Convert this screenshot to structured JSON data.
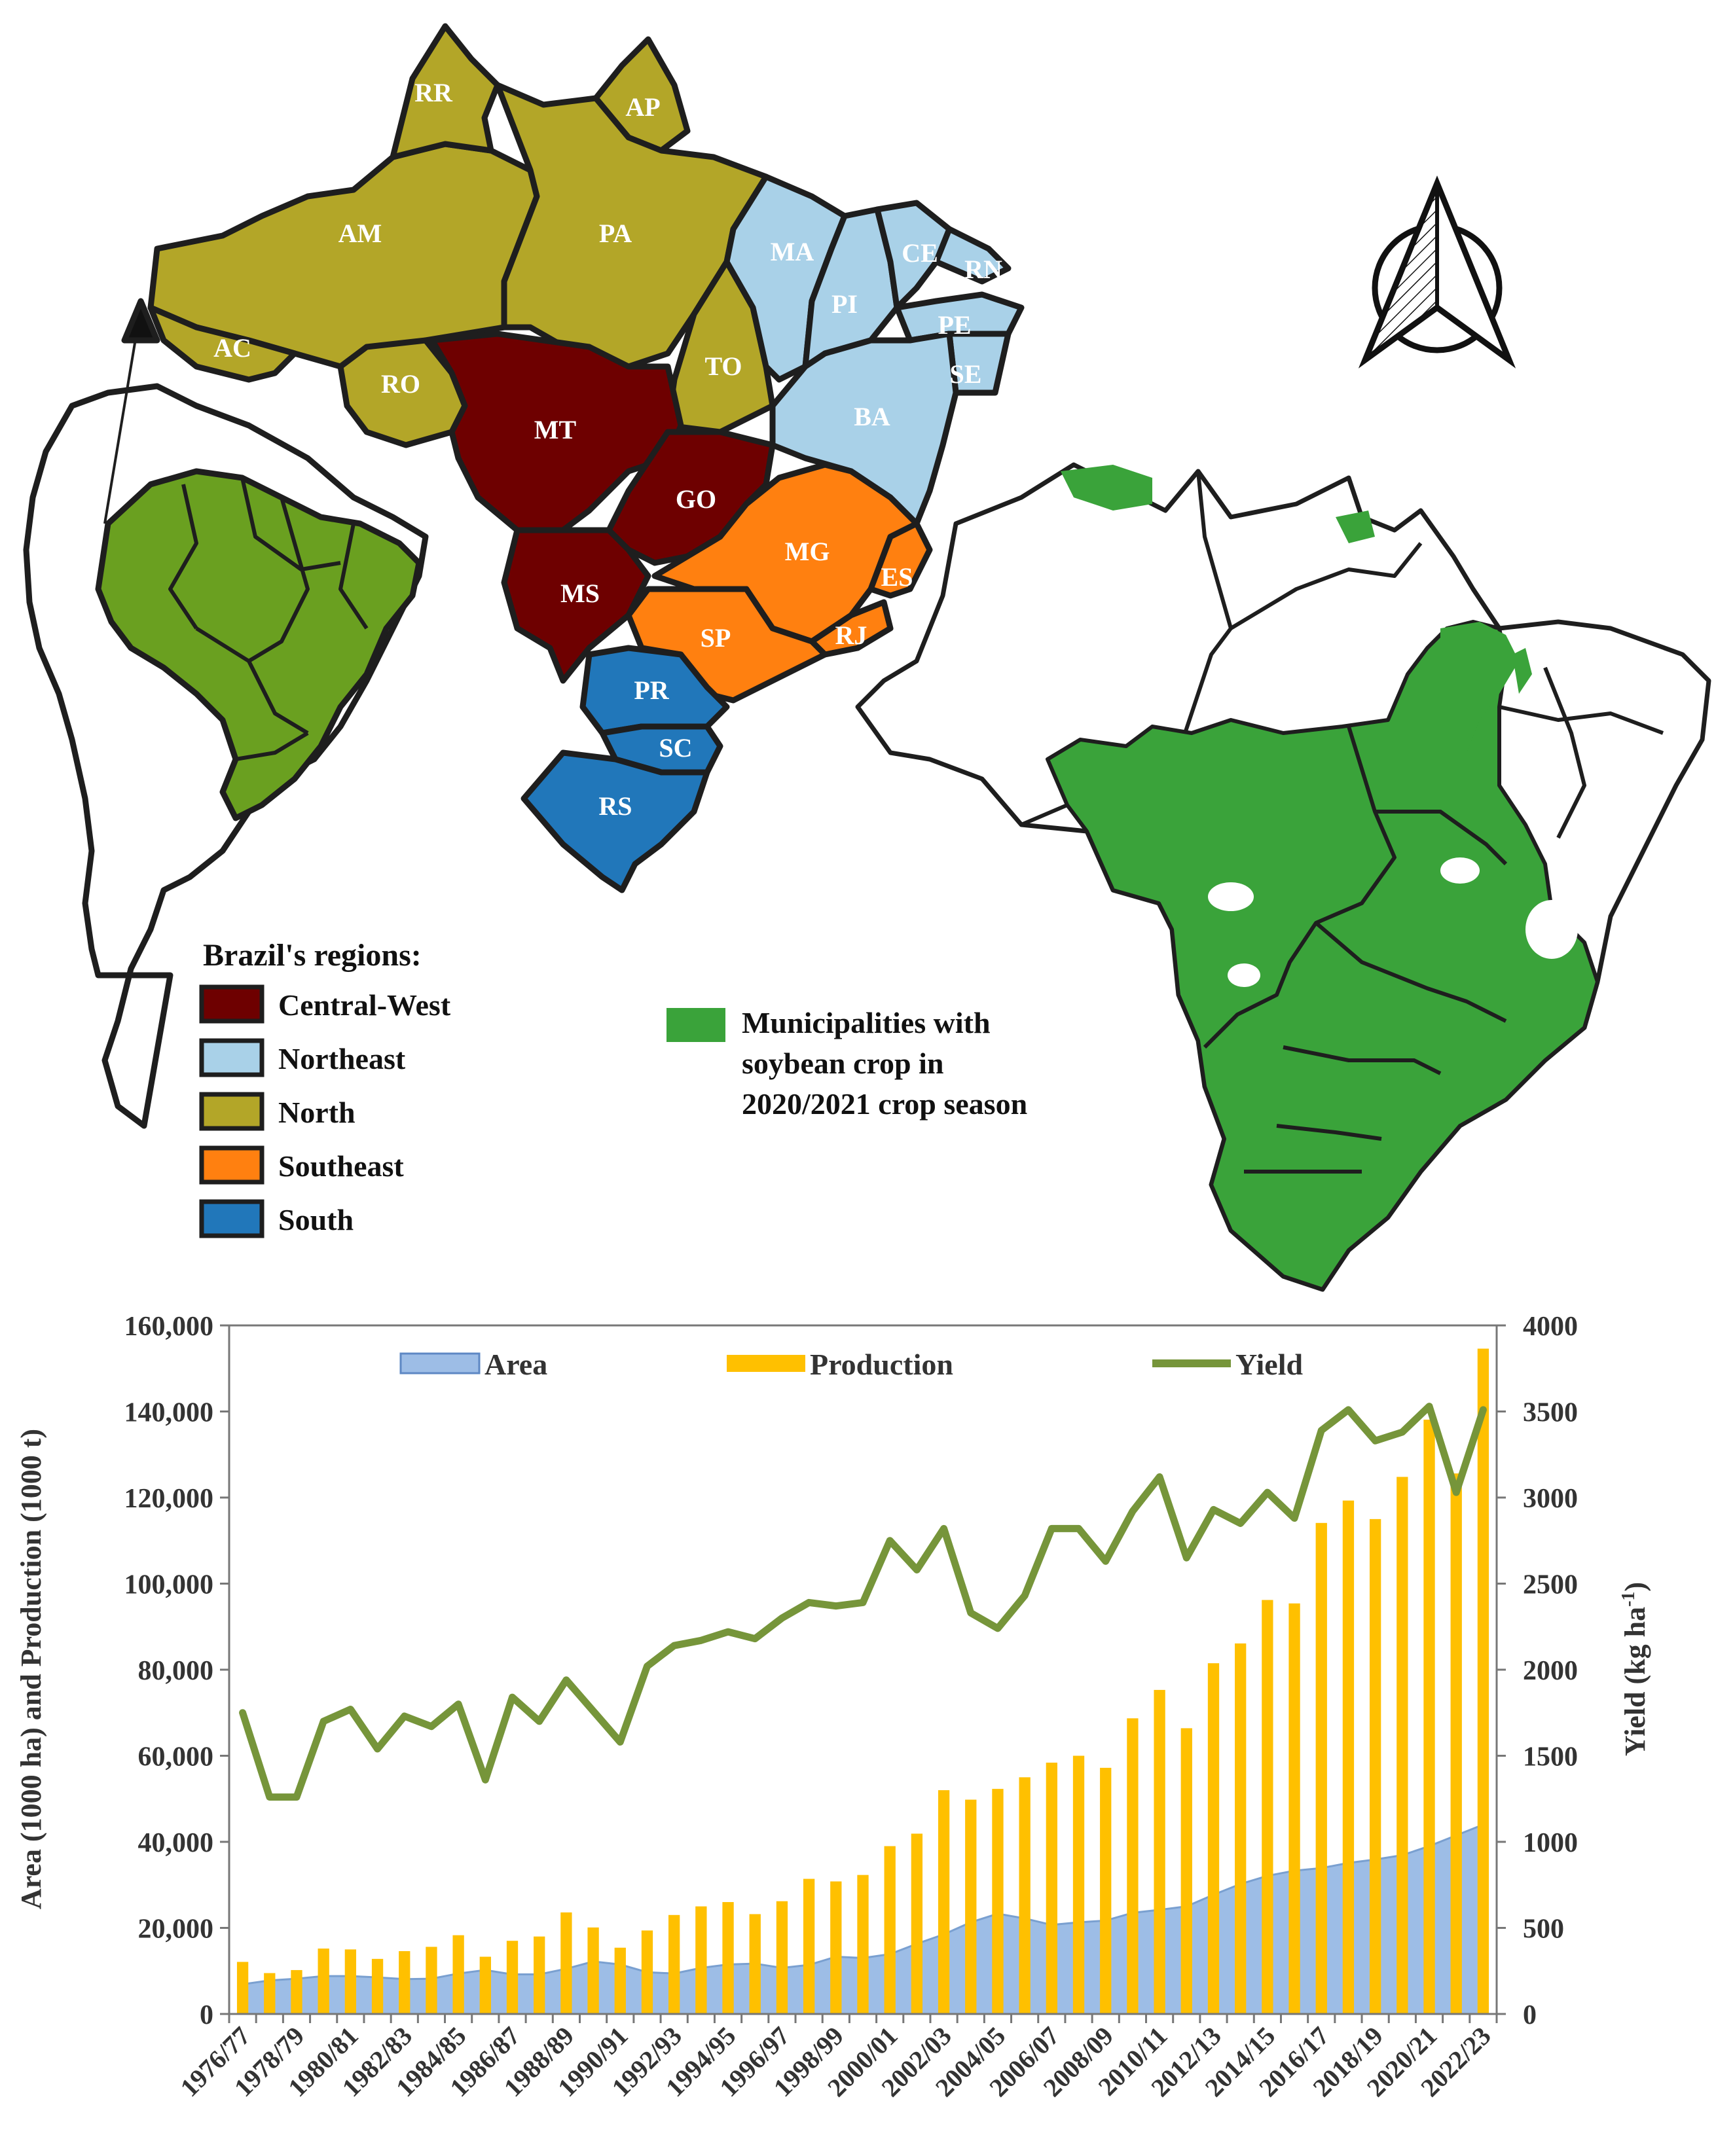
{
  "colors": {
    "central_west": "#6e0000",
    "northeast": "#a9d1e8",
    "north": "#b3a628",
    "southeast": "#ff8010",
    "south": "#2177ba",
    "soy": "#3aa33a",
    "area": "#9dbde6",
    "production": "#ffc000",
    "yield": "#76953a"
  },
  "map": {
    "states": {
      "RR": "RR",
      "AP": "AP",
      "AM": "AM",
      "PA": "PA",
      "AC": "AC",
      "RO": "RO",
      "TO": "TO",
      "MA": "MA",
      "CE": "CE",
      "RN": "RN",
      "PI": "PI",
      "PE": "PE",
      "SE": "SE",
      "BA": "BA",
      "MT": "MT",
      "GO": "GO",
      "MS": "MS",
      "MG": "MG",
      "ES": "ES",
      "SP": "SP",
      "RJ": "RJ",
      "PR": "PR",
      "SC": "SC",
      "RS": "RS"
    },
    "legend": {
      "title": "Brazil's regions:",
      "items": [
        "Central-West",
        "Northeast",
        "North",
        "Southeast",
        "South"
      ]
    },
    "soy_legend": [
      "Municipalities with",
      "soybean crop in",
      "2020/2021 crop season"
    ]
  },
  "chart_data": {
    "type": "bar+area+line",
    "ylabel_left": "Area (1000 ha) and Production  (1000 t)",
    "ylabel_right_main": "Yield (kg ha",
    "ylabel_right_sup": "-1",
    "ylabel_right_close": ")",
    "ylim_left": [
      0,
      160000
    ],
    "ylim_right": [
      0,
      4000
    ],
    "yticks_left": [
      "0",
      "20,000",
      "40,000",
      "60,000",
      "80,000",
      "100,000",
      "120,000",
      "140,000",
      "160,000"
    ],
    "yticks_right": [
      "0",
      "500",
      "1000",
      "1500",
      "2000",
      "2500",
      "3000",
      "3500",
      "4000"
    ],
    "legend": {
      "area": "Area",
      "production": "Production",
      "yield": "Yield"
    },
    "x_tick_labels": [
      "1976/77",
      "1978/79",
      "1980/81",
      "1982/83",
      "1984/85",
      "1986/87",
      "1988/89",
      "1990/91",
      "1992/93",
      "1994/95",
      "1996/97",
      "1998/99",
      "2000/01",
      "2002/03",
      "2004/05",
      "2006/07",
      "2008/09",
      "2010/11",
      "2012/13",
      "2014/15",
      "2016/17",
      "2018/19",
      "2020/21",
      "2022/23"
    ],
    "seasons": [
      "1976/77",
      "1977/78",
      "1978/79",
      "1979/80",
      "1980/81",
      "1981/82",
      "1982/83",
      "1983/84",
      "1984/85",
      "1985/86",
      "1986/87",
      "1987/88",
      "1988/89",
      "1989/90",
      "1990/91",
      "1991/92",
      "1992/93",
      "1993/94",
      "1994/95",
      "1995/96",
      "1996/97",
      "1997/98",
      "1998/99",
      "1999/00",
      "2000/01",
      "2001/02",
      "2002/03",
      "2003/04",
      "2004/05",
      "2005/06",
      "2006/07",
      "2007/08",
      "2008/09",
      "2009/10",
      "2010/11",
      "2011/12",
      "2012/13",
      "2013/14",
      "2014/15",
      "2015/16",
      "2016/17",
      "2017/18",
      "2018/19",
      "2019/20",
      "2020/21",
      "2021/22",
      "2022/23"
    ],
    "area": [
      6900,
      7800,
      8200,
      8800,
      8800,
      8500,
      8100,
      8200,
      9400,
      10200,
      9200,
      9200,
      10500,
      12200,
      11500,
      9700,
      9400,
      10700,
      11500,
      11700,
      10700,
      11400,
      13300,
      13000,
      13900,
      16300,
      18500,
      21300,
      23300,
      22200,
      20700,
      21300,
      21700,
      23500,
      24200,
      25000,
      27700,
      30200,
      32100,
      33300,
      33900,
      35100,
      35900,
      36900,
      39000,
      41500,
      44000
    ],
    "production": [
      12100,
      9500,
      10200,
      15200,
      15000,
      12800,
      14600,
      15600,
      18300,
      13300,
      17000,
      18000,
      23600,
      20100,
      15400,
      19400,
      23000,
      25000,
      26000,
      23200,
      26200,
      31400,
      30800,
      32300,
      39000,
      41900,
      52000,
      49800,
      52300,
      55000,
      58400,
      60000,
      57200,
      68700,
      75300,
      66400,
      81500,
      86100,
      96200,
      95400,
      114100,
      119300,
      115000,
      124800,
      138100,
      125600,
      154600
    ],
    "yield": [
      1750,
      1260,
      1260,
      1700,
      1770,
      1540,
      1730,
      1670,
      1800,
      1360,
      1840,
      1700,
      1940,
      1760,
      1580,
      2020,
      2140,
      2170,
      2220,
      2180,
      2300,
      2390,
      2370,
      2390,
      2750,
      2580,
      2820,
      2330,
      2240,
      2430,
      2820,
      2820,
      2630,
      2920,
      3120,
      2650,
      2930,
      2850,
      3030,
      2880,
      3390,
      3510,
      3330,
      3380,
      3530,
      3030,
      3510
    ]
  }
}
